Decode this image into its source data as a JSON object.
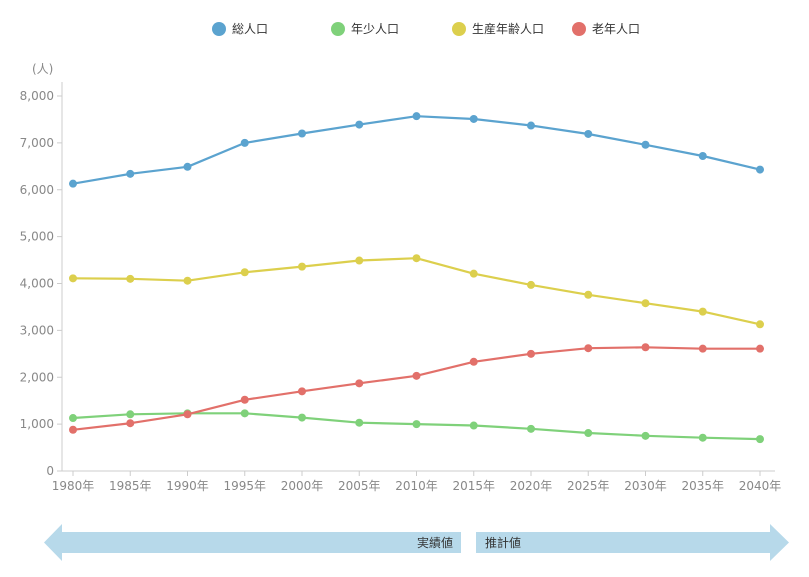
{
  "chart_data": {
    "type": "line",
    "title": "",
    "xlabel": "",
    "ylabel": "(人)",
    "ylim": [
      0,
      8000
    ],
    "yticks": [
      "0",
      "1,000",
      "2,000",
      "3,000",
      "4,000",
      "5,000",
      "6,000",
      "7,000",
      "8,000"
    ],
    "yticks_values": [
      0,
      1000,
      2000,
      3000,
      4000,
      5000,
      6000,
      7000,
      8000
    ],
    "categories": [
      "1980年",
      "1985年",
      "1990年",
      "1995年",
      "2000年",
      "2005年",
      "2010年",
      "2015年",
      "2020年",
      "2025年",
      "2030年",
      "2035年",
      "2040年"
    ],
    "legend_position": "top",
    "series": [
      {
        "name": "総人口",
        "color": "#5ba3cf",
        "values": [
          6130,
          6340,
          6490,
          7000,
          7200,
          7390,
          7570,
          7510,
          7370,
          7190,
          6960,
          6720,
          6430
        ]
      },
      {
        "name": "年少人口",
        "color": "#7fd17a",
        "values": [
          1130,
          1210,
          1230,
          1230,
          1140,
          1030,
          1000,
          970,
          900,
          810,
          750,
          710,
          680
        ]
      },
      {
        "name": "生産年齢人口",
        "color": "#dccf4d",
        "values": [
          4110,
          4100,
          4060,
          4240,
          4360,
          4490,
          4540,
          4210,
          3970,
          3760,
          3580,
          3400,
          3130
        ]
      },
      {
        "name": "老年人口",
        "color": "#e2706a",
        "values": [
          880,
          1020,
          1210,
          1520,
          1700,
          1870,
          2030,
          2330,
          2500,
          2620,
          2640,
          2610,
          2610
        ]
      }
    ],
    "arrow": {
      "left_label": "実績値",
      "right_label": "推計値",
      "color": "#b7d9ea"
    }
  }
}
